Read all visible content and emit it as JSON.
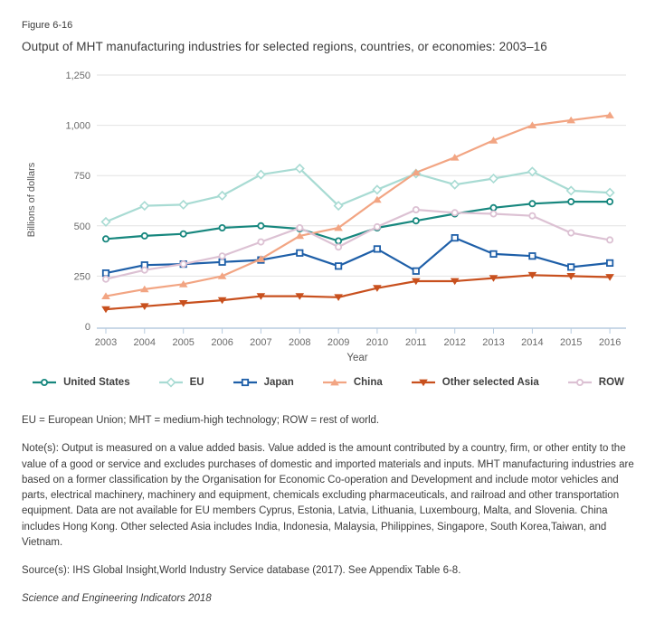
{
  "figure_label": "Figure 6-16",
  "title": "Output of MHT manufacturing industries for selected regions, countries, or economies: 2003–16",
  "chart_data": {
    "type": "line",
    "title": "Output of MHT manufacturing industries for selected regions, countries, or economies: 2003–16",
    "xlabel": "Year",
    "ylabel": "Billions of dollars",
    "ylim": [
      0,
      1250
    ],
    "grid": true,
    "legend_position": "bottom",
    "x": [
      2003,
      2004,
      2005,
      2006,
      2007,
      2008,
      2009,
      2010,
      2011,
      2012,
      2013,
      2014,
      2015,
      2016
    ],
    "yticks": [
      {
        "value": 0,
        "label": "0"
      },
      {
        "value": 250,
        "label": "250"
      },
      {
        "value": 500,
        "label": "500"
      },
      {
        "value": 750,
        "label": "750"
      },
      {
        "value": 1000,
        "label": "1,000"
      },
      {
        "value": 1250,
        "label": "1,250"
      }
    ],
    "series": [
      {
        "name": "United States",
        "color": "#17877E",
        "marker": "circle",
        "values": [
          435,
          450,
          460,
          490,
          500,
          485,
          425,
          490,
          525,
          560,
          590,
          610,
          620,
          620
        ]
      },
      {
        "name": "EU",
        "color": "#A8DBD3",
        "marker": "diamond",
        "values": [
          520,
          600,
          605,
          650,
          755,
          785,
          600,
          680,
          760,
          705,
          735,
          770,
          675,
          665
        ]
      },
      {
        "name": "Japan",
        "color": "#1E5FA8",
        "marker": "square",
        "values": [
          265,
          305,
          310,
          320,
          330,
          365,
          300,
          385,
          275,
          440,
          360,
          350,
          295,
          315
        ]
      },
      {
        "name": "China",
        "color": "#F2A583",
        "marker": "triangle-up",
        "values": [
          150,
          185,
          210,
          250,
          335,
          450,
          490,
          630,
          765,
          840,
          925,
          1000,
          1025,
          1050
        ]
      },
      {
        "name": "Other selected Asia",
        "color": "#C8501E",
        "marker": "triangle-down",
        "values": [
          85,
          100,
          115,
          130,
          150,
          150,
          145,
          190,
          225,
          225,
          240,
          255,
          250,
          245
        ]
      },
      {
        "name": "ROW",
        "color": "#DCC1D3",
        "marker": "circle",
        "values": [
          235,
          280,
          310,
          350,
          420,
          490,
          395,
          495,
          580,
          565,
          560,
          550,
          465,
          430
        ]
      }
    ],
    "colors": {
      "gridline": "#e2e2e2",
      "axis": "#b7cbdf",
      "tick_label": "#6b6b6b",
      "axis_title": "#555555"
    }
  },
  "footer": {
    "abbreviations": "EU = European Union; MHT = medium-high technology; ROW = rest of world.",
    "notes": "Note(s): Output is measured on a value added basis. Value added is the amount contributed by a country, firm, or other entity to the value of a good or service and excludes purchases of domestic and imported materials and inputs. MHT manufacturing industries are based on a former classification by the Organisation for Economic Co-operation and Development and include motor vehicles and parts, electrical machinery, machinery and equipment, chemicals excluding pharmaceuticals, and railroad and other transportation equipment. Data are not available for EU members Cyprus, Estonia, Latvia, Lithuania, Luxembourg, Malta, and Slovenia. China includes Hong Kong. Other selected Asia includes India, Indonesia, Malaysia, Philippines, Singapore, South Korea,Taiwan, and Vietnam.",
    "source": "Source(s): IHS Global Insight,World Industry Service database (2017). See Appendix Table 6-8.",
    "publication": "Science and Engineering Indicators 2018"
  }
}
